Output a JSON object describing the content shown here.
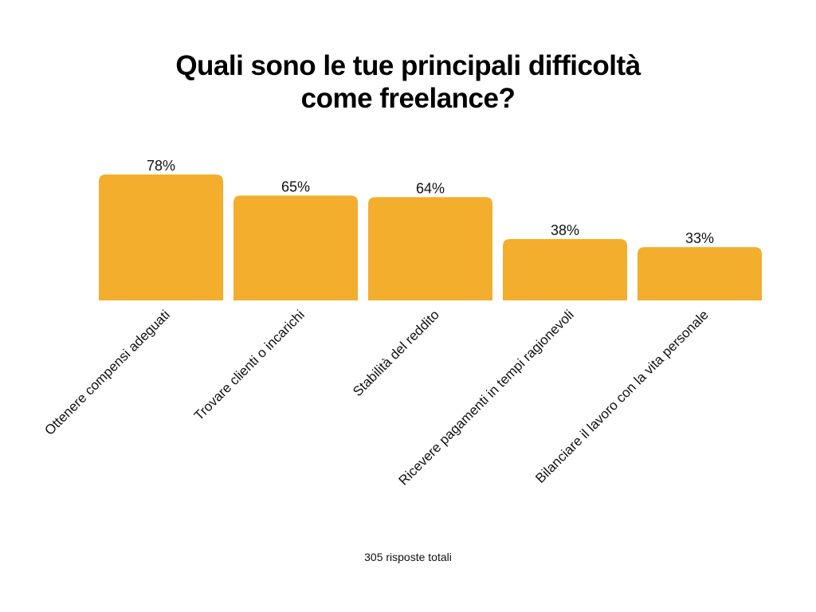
{
  "chart_data": {
    "type": "bar",
    "title_lines": [
      "Quali sono le tue principali difficoltà",
      "come freelance?"
    ],
    "categories": [
      "Ottenere compensi adeguati",
      "Trovare clienti o incarichi",
      "Stabilità del reddito",
      "Ricevere pagamenti in tempi ragionevoli",
      "Bilanciare il lavoro con la vita personale"
    ],
    "values": [
      78,
      65,
      64,
      38,
      33
    ],
    "data_labels": [
      "78%",
      "65%",
      "64%",
      "38%",
      "33%"
    ],
    "ylim": [
      0,
      100
    ],
    "grid": false,
    "bar_color": "#F2AE2C",
    "footer": "305 risposte totali"
  }
}
